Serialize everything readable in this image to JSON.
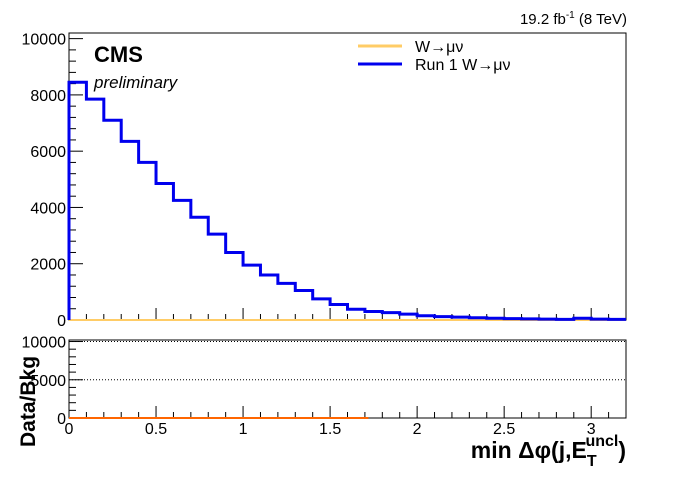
{
  "chart_data": [
    {
      "panel": "main",
      "type": "line",
      "lumi_label": {
        "main": "19.2 fb",
        "sup": "-1",
        "rest": " (8 TeV)"
      },
      "cms_label": "CMS",
      "preliminary_label": "preliminary",
      "xlim": [
        0,
        3.2
      ],
      "ylim": [
        0,
        10200
      ],
      "y_ticks": [
        {
          "value": 0,
          "label": "0"
        },
        {
          "value": 2000,
          "label": "2000"
        },
        {
          "value": 4000,
          "label": "4000"
        },
        {
          "value": 6000,
          "label": "6000"
        },
        {
          "value": 8000,
          "label": "8000"
        },
        {
          "value": 10000,
          "label": "10000"
        }
      ],
      "grid": false,
      "legend_position": "top-right",
      "bin_edges": [
        0,
        0.1,
        0.2,
        0.3,
        0.4,
        0.5,
        0.6,
        0.7,
        0.8,
        0.9,
        1.0,
        1.1,
        1.2,
        1.3,
        1.4,
        1.5,
        1.6,
        1.7,
        1.8,
        1.9,
        2.0,
        2.1,
        2.2,
        2.3,
        2.4,
        2.5,
        2.6,
        2.7,
        2.8,
        2.9,
        3.0,
        3.1,
        3.2
      ],
      "series": [
        {
          "name": "W→μν",
          "color": "#ffcc66",
          "values": [
            0,
            0,
            0,
            0,
            0,
            0,
            0,
            0,
            0,
            0,
            0,
            0,
            0,
            0,
            0,
            0,
            0,
            0,
            0,
            0,
            0,
            0,
            0,
            0,
            0,
            0,
            0,
            0,
            0,
            0,
            0,
            0
          ]
        },
        {
          "name": "Run 1 W→μν",
          "color": "#0000ee",
          "values": [
            8450,
            7850,
            7100,
            6350,
            5600,
            4850,
            4250,
            3650,
            3050,
            2400,
            1950,
            1600,
            1300,
            1050,
            750,
            550,
            380,
            300,
            260,
            210,
            150,
            120,
            100,
            80,
            60,
            50,
            40,
            30,
            20,
            60,
            30,
            20
          ]
        }
      ]
    },
    {
      "panel": "ratio",
      "type": "line",
      "ylabel": "Data/Bkg",
      "xlabel_main": "min  Δφ(j,E",
      "xlabel_sub": "T",
      "xlabel_sup": "uncl",
      "xlabel_close": ")",
      "xlim": [
        0,
        3.2
      ],
      "ylim": [
        0,
        10200
      ],
      "y_ticks": [
        {
          "value": 0,
          "label": "0"
        },
        {
          "value": 5000,
          "label": "5000"
        },
        {
          "value": 10000,
          "label": "10000"
        }
      ],
      "x_ticks": [
        {
          "value": 0,
          "label": "0"
        },
        {
          "value": 0.5,
          "label": "0.5"
        },
        {
          "value": 1,
          "label": "1"
        },
        {
          "value": 1.5,
          "label": "1.5"
        },
        {
          "value": 2,
          "label": "2"
        },
        {
          "value": 2.5,
          "label": "2.5"
        },
        {
          "value": 3,
          "label": "3"
        }
      ],
      "dotted_lines_at": [
        5000,
        10000
      ],
      "series": [
        {
          "name": "ratio",
          "color": "#ff6600",
          "x_range": [
            0,
            1.72
          ],
          "value": 0
        }
      ]
    }
  ]
}
